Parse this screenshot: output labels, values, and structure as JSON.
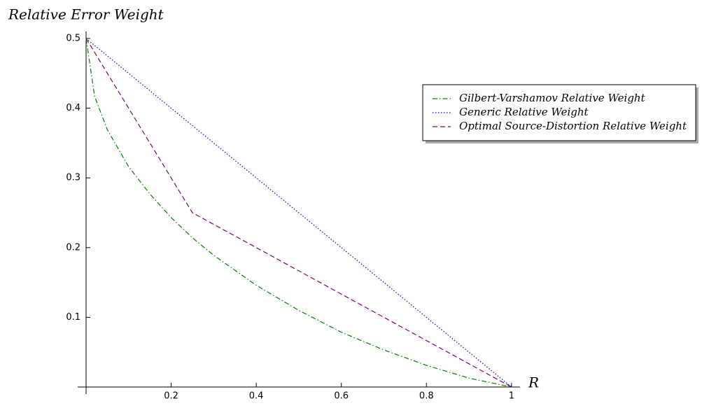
{
  "chart_data": {
    "type": "line",
    "ylabel": "Relative Error Weight",
    "xlabel": "R",
    "xlim": [
      0,
      1.02
    ],
    "ylim": [
      -0.01,
      0.51
    ],
    "xticks": [
      0.2,
      0.4,
      0.6,
      0.8,
      1
    ],
    "yticks": [
      0.1,
      0.2,
      0.3,
      0.4,
      0.5
    ],
    "legend": "upper right",
    "series": [
      {
        "name": "Gilbert-Varshamov Relative Weight",
        "color": "#008000",
        "style": "dashdot",
        "x": [
          0,
          0.02,
          0.05,
          0.1,
          0.15,
          0.2,
          0.25,
          0.3,
          0.4,
          0.5,
          0.6,
          0.7,
          0.8,
          0.9,
          1
        ],
        "values": [
          0.5,
          0.417,
          0.369,
          0.316,
          0.277,
          0.243,
          0.214,
          0.189,
          0.146,
          0.11,
          0.0786,
          0.0532,
          0.0311,
          0.0128,
          0
        ]
      },
      {
        "name": "Generic Relative Weight",
        "color": "#0000ff",
        "style": "dotted",
        "x": [
          0,
          1
        ],
        "values": [
          0.5,
          0
        ]
      },
      {
        "name": "Optimal Source-Distortion Relative Weight",
        "color": "#800080",
        "style": "dashed",
        "x": [
          0,
          0.25,
          1
        ],
        "values": [
          0.5,
          0.25,
          0
        ]
      }
    ]
  }
}
